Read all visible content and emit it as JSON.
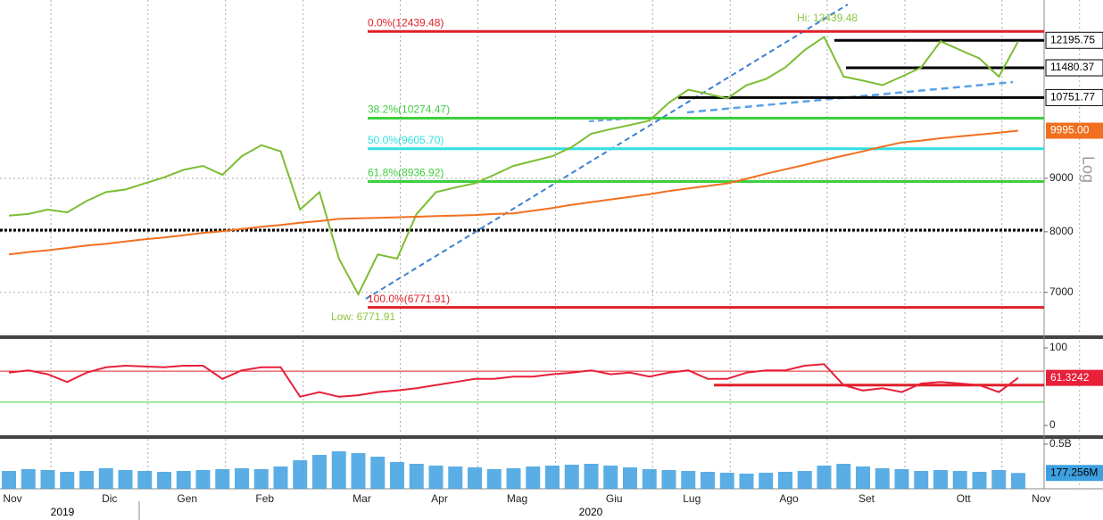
{
  "chart_data": [
    {
      "type": "line",
      "log_scale": true,
      "ylim": [
        6380,
        13330
      ],
      "yticks": [
        7000,
        8000,
        9000
      ],
      "grid": true,
      "series": [
        {
          "name": null,
          "color": "#7cbd32",
          "values": [
            8290,
            8320,
            8400,
            8350,
            8560,
            8730,
            8780,
            8900,
            9020,
            9170,
            9250,
            9070,
            9450,
            9680,
            9550,
            8400,
            8730,
            7540,
            6970,
            7610,
            7540,
            8320,
            8730,
            8820,
            8900,
            9070,
            9250,
            9350,
            9450,
            9640,
            9930,
            10030,
            10120,
            10220,
            10630,
            10940,
            10840,
            10730,
            11050,
            11200,
            11490,
            11940,
            12290,
            11260,
            11160,
            11050,
            11260,
            11490,
            12170,
            11940,
            11720,
            11260,
            12170,
            null
          ]
        },
        {
          "name": null,
          "color": "#f07020",
          "last_label": "9995.00",
          "values": [
            7610,
            7650,
            7680,
            7720,
            7760,
            7790,
            7830,
            7870,
            7900,
            7940,
            7980,
            8010,
            8050,
            8090,
            8120,
            8160,
            8190,
            8230,
            8240,
            8250,
            8260,
            8270,
            8280,
            8290,
            8300,
            8320,
            8330,
            8380,
            8430,
            8490,
            8540,
            8590,
            8640,
            8690,
            8750,
            8800,
            8850,
            8900,
            8990,
            9090,
            9180,
            9270,
            9370,
            9460,
            9550,
            9650,
            9740,
            9780,
            9830,
            9870,
            9910,
            9950,
            9995,
            null
          ]
        }
      ],
      "levels": [
        {
          "label": "0.0%(12439.48)",
          "value": 12439.48,
          "color": "#e02028"
        },
        {
          "label": "38.2%(10274.47)",
          "value": 10274.47,
          "color": "#3ecf3e"
        },
        {
          "label": "50.0%(9605.70)",
          "value": 9605.7,
          "color": "#30e0e0"
        },
        {
          "label": "61.8%(8936.92)",
          "value": 8936.92,
          "color": "#3ecf3e"
        },
        {
          "label": "100.0%(6771.91)",
          "value": 6771.91,
          "color": "#e02028"
        },
        {
          "value": 8030,
          "color": "#000000"
        },
        {
          "tag": "12195.75",
          "value": 12195.75,
          "color": "#000000"
        },
        {
          "tag": "11480.37",
          "value": 11480.37,
          "color": "#000000"
        },
        {
          "tag": "10751.77",
          "value": 10751.77,
          "color": "#000000"
        }
      ],
      "annotations": [
        "Hi: 12439.48",
        "Low: 6771.91"
      ],
      "scale_label": "Log"
    },
    {
      "type": "line",
      "ylim": [
        -11.5,
        109.2
      ],
      "yticks": [
        0,
        100
      ],
      "series": [
        {
          "name": null,
          "color": "#e8203a",
          "last_label": "61.3242",
          "values": [
            68,
            71,
            66,
            56,
            68,
            75,
            77,
            76,
            75,
            77,
            77,
            60,
            71,
            75,
            75,
            37,
            43,
            37,
            39,
            43,
            45,
            48,
            52,
            56,
            60,
            60,
            63,
            63,
            66,
            68,
            71,
            66,
            68,
            63,
            68,
            71,
            60,
            60,
            68,
            71,
            71,
            77,
            79,
            52,
            45,
            48,
            43,
            54,
            56,
            54,
            52,
            43,
            61.3242,
            null
          ]
        }
      ],
      "levels": [
        {
          "value": 70,
          "color": "#e02028"
        },
        {
          "value": 30,
          "color": "#3ecf3e"
        },
        {
          "value": 52,
          "color": "#e02028"
        }
      ]
    },
    {
      "type": "bar",
      "ylim": [
        0,
        560000000
      ],
      "yticks": [
        {
          "value": 500000000,
          "label": "0.5B"
        }
      ],
      "categories": [
        "Nov",
        null,
        null,
        null,
        null,
        "Dic",
        null,
        null,
        null,
        "Gen",
        null,
        null,
        null,
        "Feb",
        null,
        null,
        null,
        null,
        "Mar",
        null,
        null,
        null,
        "Apr",
        null,
        null,
        null,
        "Mag",
        null,
        null,
        null,
        null,
        "Giu",
        null,
        null,
        null,
        "Lug",
        null,
        null,
        null,
        null,
        "Ago",
        null,
        null,
        null,
        "Set",
        null,
        null,
        null,
        null,
        "Ott",
        null,
        null,
        null,
        "Nov"
      ],
      "year_labels": [
        "2019",
        "2020"
      ],
      "series": [
        {
          "name": null,
          "color": "#3ea0e0",
          "last_label": "177.256M",
          "values": [
            200000000,
            220000000,
            210000000,
            190000000,
            200000000,
            230000000,
            210000000,
            200000000,
            190000000,
            200000000,
            210000000,
            220000000,
            230000000,
            220000000,
            250000000,
            320000000,
            380000000,
            420000000,
            400000000,
            360000000,
            300000000,
            280000000,
            260000000,
            250000000,
            240000000,
            220000000,
            230000000,
            250000000,
            260000000,
            270000000,
            280000000,
            260000000,
            240000000,
            220000000,
            210000000,
            200000000,
            190000000,
            180000000,
            170000000,
            180000000,
            190000000,
            200000000,
            260000000,
            280000000,
            250000000,
            230000000,
            220000000,
            200000000,
            210000000,
            200000000,
            190000000,
            210000000,
            177256000,
            null
          ]
        }
      ]
    }
  ]
}
